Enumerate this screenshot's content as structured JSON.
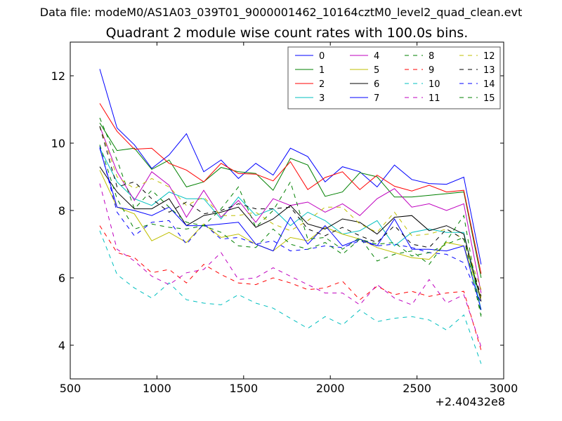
{
  "suptitle": "Data file: modeM0/AS1A03_039T01_9000001462_10164cztM0_level2_quad_clean.evt",
  "chart_data": {
    "type": "line",
    "title": "Quadrant 2 module wise count rates with 100.0s bins.",
    "xlabel": "",
    "ylabel": "",
    "x_offset_label": "+2.40432e8",
    "xlim": [
      500,
      3000
    ],
    "ylim": [
      3,
      13
    ],
    "xticks": [
      500,
      1000,
      1500,
      2000,
      2500,
      3000
    ],
    "yticks": [
      4,
      6,
      8,
      10,
      12
    ],
    "grid": false,
    "legend": {
      "position": "top-right",
      "columns": 4
    },
    "x": [
      670,
      770,
      870,
      970,
      1070,
      1170,
      1270,
      1370,
      1470,
      1570,
      1670,
      1770,
      1870,
      1970,
      2070,
      2170,
      2270,
      2370,
      2470,
      2570,
      2670,
      2770,
      2870
    ],
    "series": [
      {
        "name": "0",
        "color": "#0000ff",
        "dash": "solid",
        "values": [
          12.2,
          10.45,
          9.95,
          9.25,
          9.65,
          10.28,
          9.15,
          9.5,
          8.95,
          9.4,
          9.05,
          9.85,
          9.6,
          8.85,
          9.3,
          9.15,
          8.7,
          9.35,
          8.92,
          8.8,
          8.78,
          8.99,
          6.4
        ]
      },
      {
        "name": "1",
        "color": "#008000",
        "dash": "solid",
        "values": [
          10.6,
          9.78,
          9.85,
          9.22,
          9.5,
          8.7,
          8.85,
          9.28,
          9.15,
          9.1,
          8.6,
          9.55,
          9.35,
          8.42,
          8.55,
          9.12,
          9.0,
          8.4,
          8.4,
          8.45,
          8.5,
          8.55,
          6.0
        ]
      },
      {
        "name": "2",
        "color": "#ff0000",
        "dash": "solid",
        "values": [
          11.18,
          10.35,
          9.82,
          9.85,
          9.4,
          9.2,
          8.85,
          9.4,
          9.1,
          9.08,
          8.88,
          9.45,
          8.62,
          8.98,
          9.15,
          8.62,
          9.05,
          8.72,
          8.58,
          8.75,
          8.55,
          8.6,
          6.12
        ]
      },
      {
        "name": "3",
        "color": "#00bfbf",
        "dash": "solid",
        "values": [
          9.85,
          8.85,
          8.35,
          8.15,
          8.55,
          8.35,
          8.35,
          7.75,
          8.4,
          7.85,
          8.05,
          7.55,
          7.95,
          7.7,
          7.3,
          7.4,
          7.7,
          6.95,
          7.35,
          7.45,
          7.35,
          7.35,
          5.05
        ]
      },
      {
        "name": "4",
        "color": "#bf00bf",
        "dash": "solid",
        "values": [
          10.5,
          9.15,
          8.3,
          9.15,
          8.75,
          7.8,
          8.6,
          7.8,
          8.3,
          7.65,
          8.35,
          8.15,
          8.25,
          7.95,
          8.2,
          7.85,
          8.35,
          8.65,
          8.1,
          8.2,
          8.0,
          8.2,
          5.55
        ]
      },
      {
        "name": "5",
        "color": "#bfbf00",
        "dash": "solid",
        "values": [
          9.2,
          8.1,
          7.9,
          7.1,
          7.35,
          7.05,
          7.6,
          7.2,
          7.3,
          7.0,
          6.8,
          7.2,
          7.1,
          7.5,
          7.3,
          7.15,
          6.9,
          6.75,
          6.6,
          6.55,
          7.05,
          6.95,
          5.4
        ]
      },
      {
        "name": "6",
        "color": "#000000",
        "dash": "solid",
        "values": [
          9.3,
          8.55,
          8.05,
          8.05,
          8.35,
          7.55,
          7.85,
          7.95,
          8.1,
          7.5,
          7.75,
          8.15,
          7.6,
          7.45,
          7.75,
          7.65,
          7.3,
          7.8,
          7.85,
          7.4,
          7.55,
          7.3,
          5.3
        ]
      },
      {
        "name": "7",
        "color": "#0000ff",
        "dash": "solid",
        "values": [
          9.85,
          8.1,
          8.0,
          7.85,
          8.1,
          7.55,
          7.55,
          7.6,
          7.65,
          7.0,
          6.8,
          7.8,
          7.0,
          7.55,
          6.95,
          7.15,
          6.95,
          7.75,
          6.85,
          6.85,
          6.8,
          6.95,
          5.05
        ]
      },
      {
        "name": "8",
        "color": "#008000",
        "dash": "dashed",
        "values": [
          10.75,
          9.5,
          8.05,
          8.6,
          8.1,
          7.65,
          7.55,
          8.05,
          8.7,
          7.5,
          8.0,
          8.85,
          7.15,
          7.2,
          6.85,
          7.2,
          6.5,
          6.7,
          6.8,
          6.4,
          7.1,
          7.85,
          4.9
        ]
      },
      {
        "name": "9",
        "color": "#ff0000",
        "dash": "dashed",
        "values": [
          7.55,
          6.75,
          6.6,
          6.15,
          6.25,
          5.85,
          6.4,
          6.1,
          5.85,
          5.8,
          6.0,
          5.85,
          5.65,
          5.7,
          5.9,
          5.35,
          5.75,
          5.5,
          5.6,
          5.45,
          5.55,
          5.6,
          3.85
        ]
      },
      {
        "name": "10",
        "color": "#00bfbf",
        "dash": "dashed",
        "values": [
          7.4,
          6.1,
          5.7,
          5.4,
          5.85,
          5.35,
          5.25,
          5.2,
          5.5,
          5.25,
          5.1,
          4.8,
          4.5,
          4.85,
          4.6,
          5.05,
          4.7,
          4.8,
          4.85,
          4.75,
          4.45,
          4.9,
          3.45
        ]
      },
      {
        "name": "11",
        "color": "#bf00bf",
        "dash": "dashed",
        "values": [
          8.8,
          6.85,
          6.5,
          6.05,
          5.8,
          6.15,
          6.25,
          6.75,
          5.95,
          6.0,
          6.3,
          6.05,
          5.8,
          5.55,
          5.55,
          5.2,
          5.8,
          5.4,
          5.2,
          5.95,
          5.25,
          5.5,
          3.95
        ]
      },
      {
        "name": "12",
        "color": "#bfbf00",
        "dash": "dashed",
        "values": [
          10.5,
          9.0,
          8.65,
          8.95,
          8.7,
          8.15,
          8.4,
          7.85,
          7.85,
          7.95,
          7.6,
          7.4,
          7.7,
          8.1,
          8.1,
          7.6,
          7.35,
          7.95,
          7.25,
          7.3,
          7.45,
          7.15,
          5.65
        ]
      },
      {
        "name": "13",
        "color": "#000000",
        "dash": "dashed",
        "values": [
          10.5,
          8.7,
          8.85,
          8.35,
          7.95,
          8.25,
          7.9,
          8.0,
          8.2,
          8.05,
          8.05,
          8.1,
          7.45,
          7.25,
          7.5,
          7.25,
          7.05,
          7.55,
          7.0,
          6.9,
          7.45,
          7.15,
          5.45
        ]
      },
      {
        "name": "14",
        "color": "#0000ff",
        "dash": "dashed",
        "values": [
          9.9,
          7.95,
          7.25,
          7.65,
          7.7,
          7.0,
          7.6,
          7.15,
          7.2,
          7.0,
          7.1,
          6.8,
          6.85,
          6.95,
          6.9,
          7.1,
          6.95,
          7.0,
          6.9,
          6.75,
          6.7,
          6.45,
          5.25
        ]
      },
      {
        "name": "15",
        "color": "#008000",
        "dash": "dashed",
        "values": [
          9.95,
          8.35,
          7.45,
          7.6,
          7.5,
          7.45,
          7.55,
          7.35,
          6.95,
          6.9,
          7.45,
          7.0,
          6.85,
          7.05,
          6.7,
          7.15,
          7.0,
          7.05,
          6.65,
          6.75,
          7.0,
          7.2,
          4.85
        ]
      }
    ]
  }
}
